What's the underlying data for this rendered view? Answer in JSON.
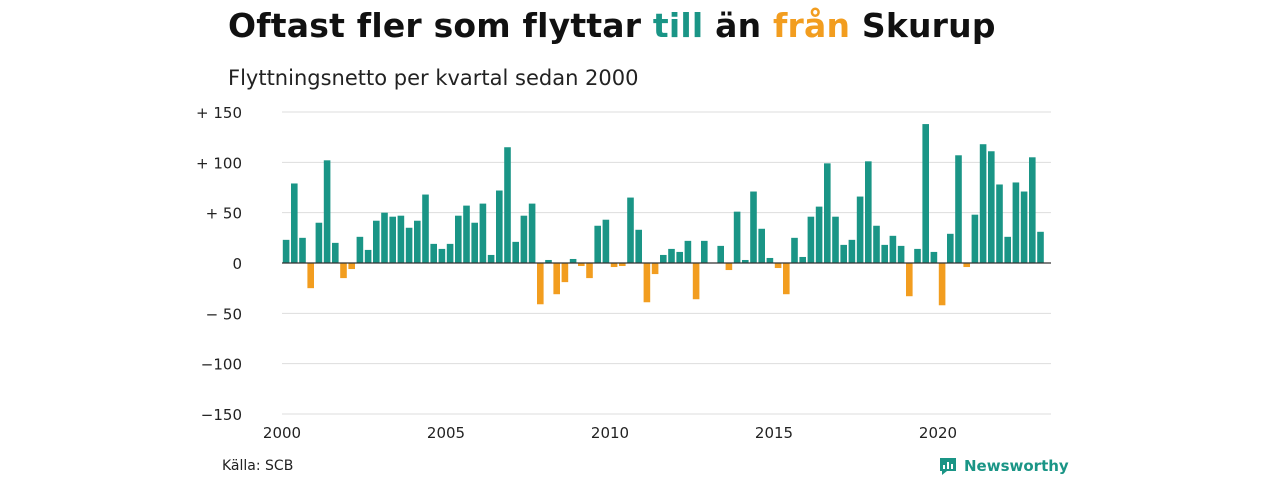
{
  "header": {
    "title_pre": "Oftast fler som flyttar ",
    "title_till": "till",
    "title_mid": " än ",
    "title_fran": "från",
    "title_post": " Skurup",
    "subtitle": "Flyttningsnetto per kvartal sedan 2000"
  },
  "footer": {
    "source": "Källa: SCB",
    "brand": "Newsworthy"
  },
  "colors": {
    "positive": "#1a9586",
    "negative": "#f29d1f",
    "grid": "#dddddd",
    "brand": "#1a9586"
  },
  "chart_data": {
    "type": "bar",
    "title": "Oftast fler som flyttar till än från Skurup",
    "subtitle": "Flyttningsnetto per kvartal sedan 2000",
    "x_start": 2000,
    "periods_per_year": 4,
    "x_ticks": [
      2000,
      2005,
      2010,
      2015,
      2020
    ],
    "y_ticks": [
      150,
      100,
      50,
      0,
      -50,
      -100,
      -150
    ],
    "y_tick_labels": [
      "+ 150",
      "+ 100",
      "+  50",
      "0",
      "− 50",
      "−100",
      "−150"
    ],
    "ylim": [
      -150,
      150
    ],
    "grid": true,
    "values": [
      23,
      79,
      25,
      -25,
      40,
      102,
      20,
      -15,
      -6,
      26,
      13,
      42,
      50,
      46,
      47,
      35,
      42,
      68,
      19,
      14,
      19,
      47,
      57,
      40,
      59,
      8,
      72,
      115,
      21,
      47,
      59,
      -41,
      3,
      -31,
      -19,
      4,
      -3,
      -15,
      37,
      43,
      -4,
      -3,
      65,
      33,
      -39,
      -11,
      8,
      14,
      11,
      22,
      -36,
      22,
      0,
      17,
      -7,
      51,
      3,
      71,
      34,
      5,
      -5,
      -31,
      25,
      6,
      46,
      56,
      99,
      46,
      18,
      23,
      66,
      101,
      37,
      18,
      27,
      17,
      -33,
      14,
      138,
      11,
      -42,
      29,
      107,
      -4,
      48,
      118,
      111,
      78,
      26,
      80,
      71,
      105,
      31
    ]
  }
}
